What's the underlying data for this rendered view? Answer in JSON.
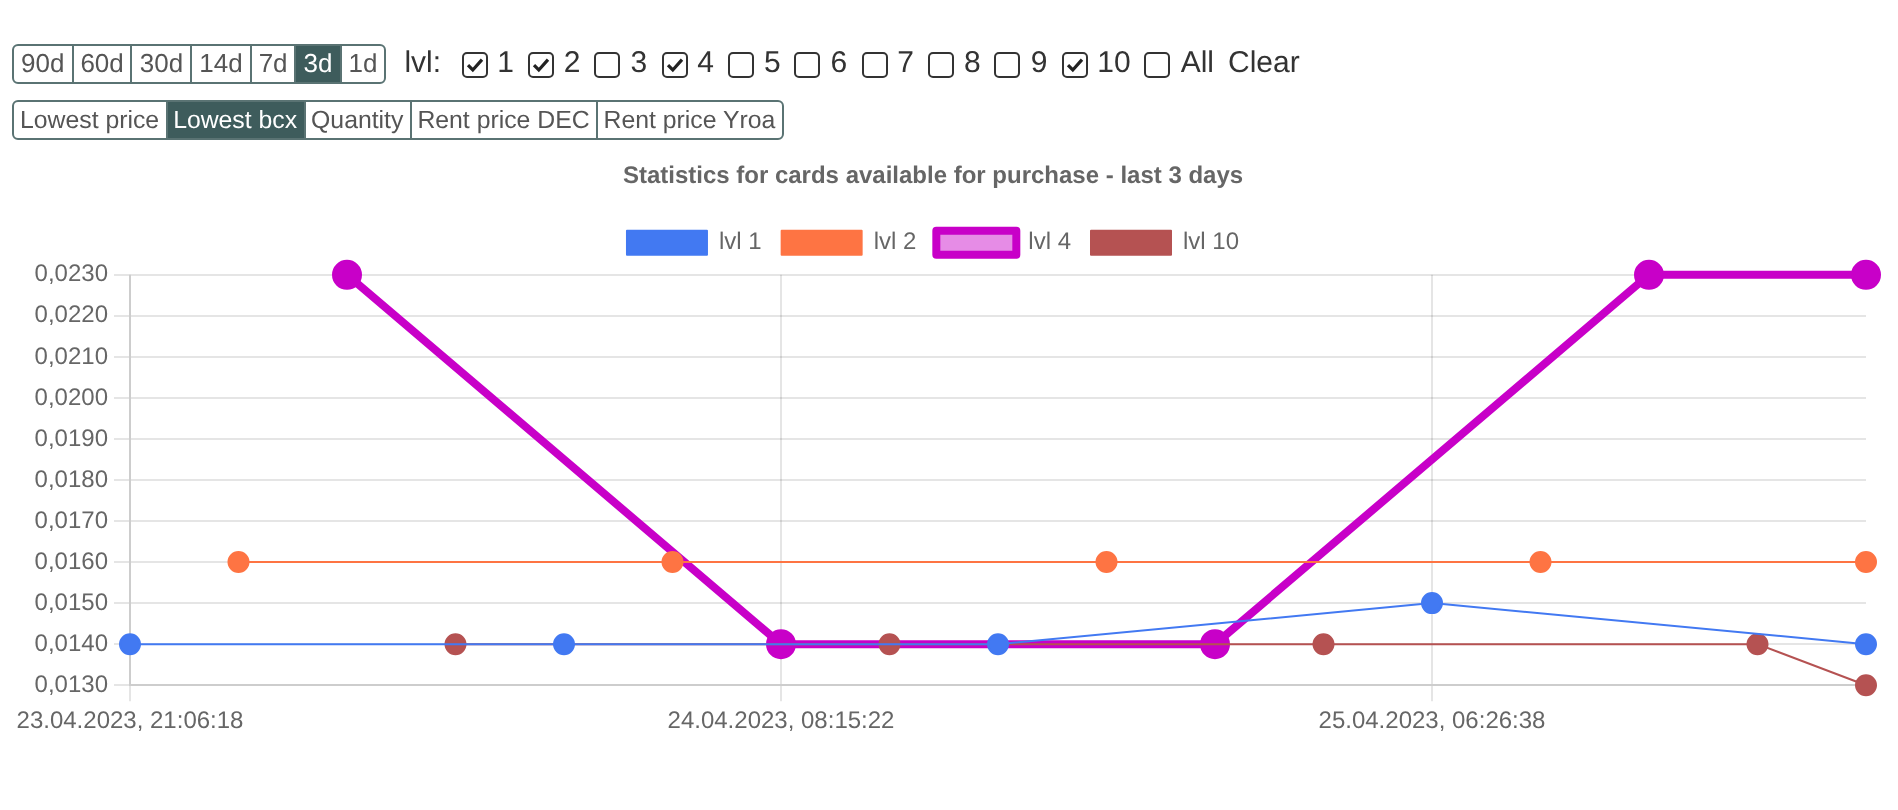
{
  "chart_data": {
    "type": "line",
    "title": "Statistics for cards available for purchase - last 3 days",
    "categories": [
      "23.04.2023, 21:06:18",
      null,
      null,
      null,
      null,
      null,
      "24.04.2023, 08:15:22",
      null,
      null,
      null,
      null,
      null,
      "25.04.2023, 06:26:38",
      null,
      null,
      null,
      null
    ],
    "series": [
      {
        "name": "lvl 1",
        "color": "#4279f2",
        "values": [
          0.014,
          null,
          null,
          null,
          0.014,
          null,
          null,
          null,
          0.014,
          null,
          null,
          null,
          0.015,
          null,
          null,
          null,
          0.014
        ]
      },
      {
        "name": "lvl 2",
        "color": "#fe7443",
        "values": [
          null,
          0.016,
          null,
          null,
          null,
          0.016,
          null,
          null,
          null,
          0.016,
          null,
          null,
          null,
          0.016,
          null,
          null,
          0.016
        ]
      },
      {
        "name": "lvl 4",
        "color": "#c800c8",
        "values": [
          null,
          null,
          0.023,
          null,
          null,
          null,
          0.014,
          null,
          null,
          null,
          0.014,
          null,
          null,
          null,
          0.023,
          null,
          0.023
        ]
      },
      {
        "name": "lvl 10",
        "color": "#b55252",
        "values": [
          null,
          null,
          null,
          0.014,
          null,
          null,
          null,
          0.014,
          null,
          null,
          null,
          0.014,
          null,
          null,
          null,
          0.014,
          0.013
        ]
      }
    ],
    "ylim": [
      0.013,
      0.023
    ],
    "yticks": [
      {
        "value": 0.013,
        "label": "0,0130"
      },
      {
        "value": 0.014,
        "label": "0,0140"
      },
      {
        "value": 0.015,
        "label": "0,0150"
      },
      {
        "value": 0.016,
        "label": "0,0160"
      },
      {
        "value": 0.017,
        "label": "0,0170"
      },
      {
        "value": 0.018,
        "label": "0,0180"
      },
      {
        "value": 0.019,
        "label": "0,0190"
      },
      {
        "value": 0.02,
        "label": "0,0200"
      },
      {
        "value": 0.021,
        "label": "0,0210"
      },
      {
        "value": 0.022,
        "label": "0,0220"
      },
      {
        "value": 0.023,
        "label": "0,0230"
      }
    ],
    "grid": true,
    "legend": "top",
    "marker": "circle",
    "annotations": [
      "90d",
      "60d",
      "30d",
      "14d",
      "7d",
      "3d",
      "1d",
      "lvl:",
      "1",
      "2",
      "3",
      "4",
      "5",
      "6",
      "7",
      "8",
      "9",
      "10",
      "All",
      "Clear",
      "Lowest price",
      "Lowest bcx",
      "Quantity",
      "Rent price DEC",
      "Rent price Yroa"
    ]
  }
}
